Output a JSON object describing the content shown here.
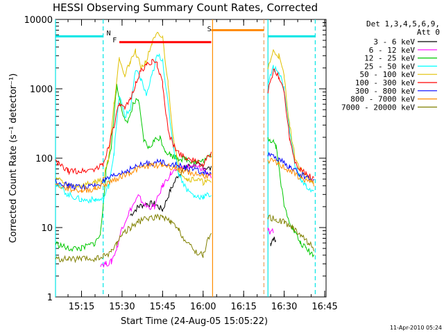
{
  "chart_data": {
    "type": "line",
    "title": "HESSI Observing Summary Count Rates, Corrected",
    "xlabel": "Start Time (24-Aug-05 15:05:22)",
    "ylabel": "Corrected Count Rate (s⁻¹ detector⁻¹)",
    "y_scale": "log",
    "ylim": [
      1,
      10000
    ],
    "y_ticks": [
      1,
      10,
      100,
      1000,
      10000
    ],
    "y_tick_labels": [
      "1",
      "10",
      "100",
      "1000",
      "10000"
    ],
    "xlim": [
      "15:05:22",
      "16:45:30"
    ],
    "x_ticks": [
      "15:15",
      "15:30",
      "15:45",
      "16:00",
      "16:15",
      "16:30",
      "16:45"
    ],
    "grid": false,
    "legend_position": "right",
    "legend_header": [
      "Det 1,3,4,5,6,9,",
      "Att 0"
    ],
    "timestamp": "11-Apr-2010 05:24",
    "annotations": {
      "night": "N",
      "flare": "F",
      "saa": "S"
    },
    "colors": {
      "night": "#00e6e6",
      "flare": "#ff0000",
      "saa": "#ff8c00",
      "dashed_cyan": "#00e6e6",
      "dashed_orange": "#e8a060"
    },
    "state_bars": {
      "night": [
        {
          "start": "15:05:22",
          "end": "15:23:00",
          "level": 5700
        },
        {
          "start": "16:24:00",
          "end": "16:41:30",
          "level": 5700
        }
      ],
      "flare": [
        {
          "start": "15:29:00",
          "end": "16:03:00",
          "level": 4700
        }
      ],
      "saa": [
        {
          "start": "16:03:00",
          "end": "16:22:30",
          "level": 7000
        }
      ]
    },
    "vertical_lines": [
      {
        "time": "15:05:22",
        "color": "cyan",
        "style": "solid"
      },
      {
        "time": "15:23:00",
        "color": "cyan",
        "style": "dashed"
      },
      {
        "time": "16:03:30",
        "color": "orange",
        "style": "solid"
      },
      {
        "time": "16:22:30",
        "color": "orange",
        "style": "dashed"
      },
      {
        "time": "16:24:00",
        "color": "cyan",
        "style": "solid"
      },
      {
        "time": "16:41:30",
        "color": "cyan",
        "style": "dashed"
      }
    ],
    "series": [
      {
        "name": "3 - 6 keV",
        "color": "#000000",
        "x": [
          "15:33",
          "15:36",
          "15:39",
          "15:42",
          "15:45",
          "15:48",
          "15:51",
          "15:54",
          "15:57",
          "16:00",
          "16:03",
          "16:25",
          "16:26",
          "16:27"
        ],
        "y": [
          15,
          20,
          22,
          22,
          18,
          35,
          60,
          75,
          80,
          75,
          70,
          6,
          7,
          6
        ]
      },
      {
        "name": "6 - 12 keV",
        "color": "#ff00ff",
        "x": [
          "15:22",
          "15:24",
          "15:26",
          "15:28",
          "15:30",
          "15:33",
          "15:36",
          "15:39",
          "15:42",
          "15:45",
          "15:48",
          "15:51",
          "15:54",
          "15:57",
          "16:00",
          "16:03",
          "16:24",
          "16:25",
          "16:26"
        ],
        "y": [
          3,
          3,
          3.2,
          5,
          10,
          18,
          28,
          20,
          20,
          40,
          60,
          72,
          75,
          75,
          70,
          55,
          9,
          8,
          9
        ]
      },
      {
        "name": "12 - 25 keV",
        "color": "#00c800",
        "x": [
          "15:05",
          "15:10",
          "15:15",
          "15:20",
          "15:22",
          "15:24",
          "15:26",
          "15:28",
          "15:30",
          "15:32",
          "15:34",
          "15:36",
          "15:38",
          "15:40",
          "15:42",
          "15:44",
          "15:46",
          "15:48",
          "15:51",
          "15:54",
          "15:57",
          "16:00",
          "16:03",
          "16:24",
          "16:25",
          "16:26",
          "16:27",
          "16:30",
          "16:33",
          "16:36",
          "16:38",
          "16:41"
        ],
        "y": [
          6,
          5,
          5,
          6,
          8,
          60,
          150,
          1100,
          500,
          300,
          600,
          700,
          180,
          140,
          180,
          200,
          130,
          110,
          100,
          95,
          90,
          90,
          110,
          200,
          180,
          180,
          150,
          20,
          10,
          6,
          5,
          4
        ]
      },
      {
        "name": "25 - 50 keV",
        "color": "#00ffff",
        "x": [
          "15:05",
          "15:10",
          "15:15",
          "15:20",
          "15:23",
          "15:25",
          "15:27",
          "15:29",
          "15:31",
          "15:33",
          "15:35",
          "15:37",
          "15:39",
          "15:41",
          "15:43",
          "15:45",
          "15:47",
          "15:49",
          "15:51",
          "15:54",
          "15:57",
          "16:00",
          "16:03",
          "16:24",
          "16:26",
          "16:28",
          "16:30",
          "16:32",
          "16:34",
          "16:36",
          "16:38",
          "16:41"
        ],
        "y": [
          45,
          30,
          25,
          25,
          25,
          40,
          120,
          800,
          400,
          500,
          1800,
          1400,
          800,
          1500,
          3000,
          2700,
          600,
          150,
          60,
          35,
          28,
          28,
          30,
          1200,
          2000,
          1800,
          1000,
          250,
          80,
          50,
          40,
          32
        ]
      },
      {
        "name": "50 - 100 keV",
        "color": "#e0c000",
        "x": [
          "15:05",
          "15:10",
          "15:15",
          "15:20",
          "15:23",
          "15:25",
          "15:27",
          "15:29",
          "15:31",
          "15:33",
          "15:35",
          "15:37",
          "15:39",
          "15:41",
          "15:43",
          "15:45",
          "15:47",
          "15:49",
          "15:51",
          "15:54",
          "15:57",
          "16:00",
          "16:03",
          "16:24",
          "16:26",
          "16:28",
          "16:30",
          "16:32",
          "16:34",
          "16:36",
          "16:38",
          "16:41"
        ],
        "y": [
          55,
          40,
          40,
          45,
          50,
          100,
          600,
          3000,
          1500,
          2500,
          3500,
          2000,
          2500,
          4500,
          6000,
          5500,
          1200,
          200,
          70,
          50,
          50,
          45,
          45,
          2000,
          3500,
          3000,
          1500,
          300,
          100,
          70,
          55,
          45
        ]
      },
      {
        "name": "100 - 300 keV",
        "color": "#ff0000",
        "x": [
          "15:05",
          "15:10",
          "15:15",
          "15:20",
          "15:23",
          "15:25",
          "15:27",
          "15:29",
          "15:31",
          "15:33",
          "15:35",
          "15:37",
          "15:39",
          "15:41",
          "15:43",
          "15:45",
          "15:47",
          "15:49",
          "15:51",
          "15:54",
          "15:57",
          "16:00",
          "16:03",
          "16:24",
          "16:26",
          "16:28",
          "16:30",
          "16:32",
          "16:34",
          "16:36",
          "16:38",
          "16:41"
        ],
        "y": [
          90,
          65,
          65,
          70,
          80,
          150,
          300,
          600,
          500,
          700,
          1200,
          1800,
          2200,
          2500,
          2200,
          1200,
          250,
          150,
          120,
          100,
          90,
          80,
          120,
          900,
          1800,
          1500,
          900,
          200,
          90,
          70,
          60,
          50
        ]
      },
      {
        "name": "300 - 800 keV",
        "color": "#0000ff",
        "x": [
          "15:05",
          "15:10",
          "15:15",
          "15:20",
          "15:25",
          "15:30",
          "15:35",
          "15:40",
          "15:45",
          "15:50",
          "15:55",
          "16:00",
          "16:03",
          "16:24",
          "16:28",
          "16:32",
          "16:36",
          "16:41"
        ],
        "y": [
          48,
          40,
          38,
          40,
          50,
          62,
          75,
          85,
          88,
          80,
          70,
          62,
          60,
          110,
          95,
          75,
          58,
          48
        ]
      },
      {
        "name": "800 - 7000 keV",
        "color": "#ff8c00",
        "x": [
          "15:05",
          "15:10",
          "15:15",
          "15:20",
          "15:25",
          "15:30",
          "15:35",
          "15:40",
          "15:45",
          "15:50",
          "15:55",
          "16:00",
          "16:03",
          "16:24",
          "16:28",
          "16:32",
          "16:36",
          "16:41"
        ],
        "y": [
          42,
          36,
          34,
          36,
          45,
          55,
          68,
          78,
          80,
          72,
          62,
          56,
          55,
          95,
          82,
          66,
          52,
          43
        ]
      },
      {
        "name": "7000 - 20000 keV",
        "color": "#808000",
        "x": [
          "15:05",
          "15:10",
          "15:15",
          "15:20",
          "15:23",
          "15:26",
          "15:28",
          "15:30",
          "15:33",
          "15:36",
          "15:39",
          "15:42",
          "15:45",
          "15:48",
          "15:51",
          "15:54",
          "15:57",
          "16:00",
          "16:03",
          "16:24",
          "16:27",
          "16:30",
          "16:33",
          "16:36",
          "16:39",
          "16:41"
        ],
        "y": [
          3.5,
          3.5,
          3.5,
          3.5,
          3.8,
          4.5,
          6,
          8,
          10,
          12,
          13.5,
          14,
          14,
          12,
          9,
          6,
          4.5,
          4,
          9,
          14,
          13,
          12,
          10,
          8,
          6,
          5
        ]
      }
    ]
  }
}
